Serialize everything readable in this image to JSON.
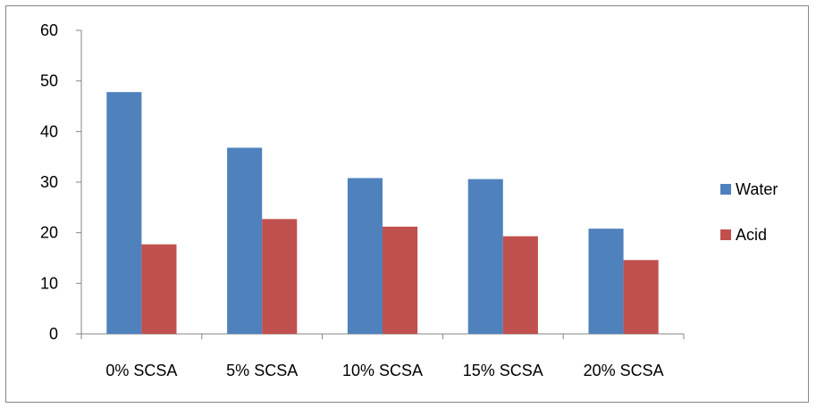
{
  "chart_data": {
    "type": "bar",
    "categories": [
      "0% SCSA",
      "5% SCSA",
      "10% SCSA",
      "15% SCSA",
      "20% SCSA"
    ],
    "series": [
      {
        "name": "Water",
        "values": [
          47.8,
          36.8,
          30.8,
          30.6,
          20.8
        ],
        "color": "#4f81bd"
      },
      {
        "name": "Acid",
        "values": [
          17.7,
          22.7,
          21.2,
          19.3,
          14.6
        ],
        "color": "#c0504d"
      }
    ],
    "yticks": [
      "0",
      "10",
      "20",
      "30",
      "40",
      "50",
      "60"
    ],
    "ylim": [
      0,
      60
    ],
    "grid": false,
    "legend_position": "right"
  }
}
